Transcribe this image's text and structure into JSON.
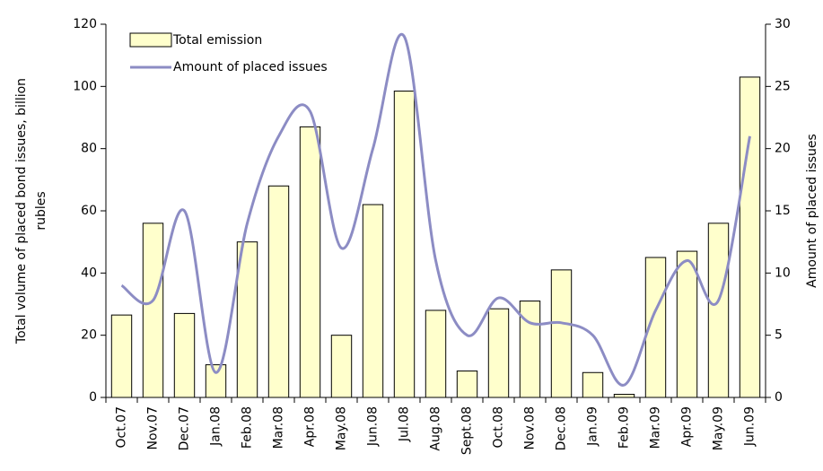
{
  "chart_data": {
    "type": "bar_line",
    "ylabel": [
      "Total volume of placed bond issues, billion",
      "rubles"
    ],
    "y2label": "Amount of placed issues",
    "categories": [
      "Oct.07",
      "Nov.07",
      "Dec.07",
      "Jan.08",
      "Feb.08",
      "Mar.08",
      "Apr.08",
      "May.08",
      "Jun.08",
      "Jul.08",
      "Aug.08",
      "Sept.08",
      "Oct.08",
      "Nov.08",
      "Dec.08",
      "Jan.09",
      "Feb.09",
      "Mar.09",
      "Apr.09",
      "May.09",
      "Jun.09"
    ],
    "series": [
      {
        "name": "Total emission",
        "type": "bar",
        "color": "#ffffcc",
        "values": [
          26.5,
          56,
          27,
          10.5,
          50,
          68,
          87,
          20,
          62,
          98.5,
          28,
          8.5,
          28.5,
          31,
          41,
          8,
          1,
          45,
          47,
          56,
          103
        ]
      },
      {
        "name": "Amount of placed issues",
        "type": "line",
        "axis": "y2",
        "color": "#8c8cc4",
        "values": [
          9,
          7.8,
          15,
          2,
          14,
          21,
          23,
          12,
          20,
          29,
          11,
          5,
          8,
          6,
          6,
          5,
          1,
          7,
          11,
          7.8,
          21
        ]
      }
    ],
    "ylim": [
      0,
      120
    ],
    "yticks": [
      0,
      20,
      40,
      60,
      80,
      100,
      120
    ],
    "y2lim": [
      0,
      30
    ],
    "y2ticks": [
      0,
      5,
      10,
      15,
      20,
      25,
      30
    ],
    "grid": false,
    "legend": "upper left"
  }
}
